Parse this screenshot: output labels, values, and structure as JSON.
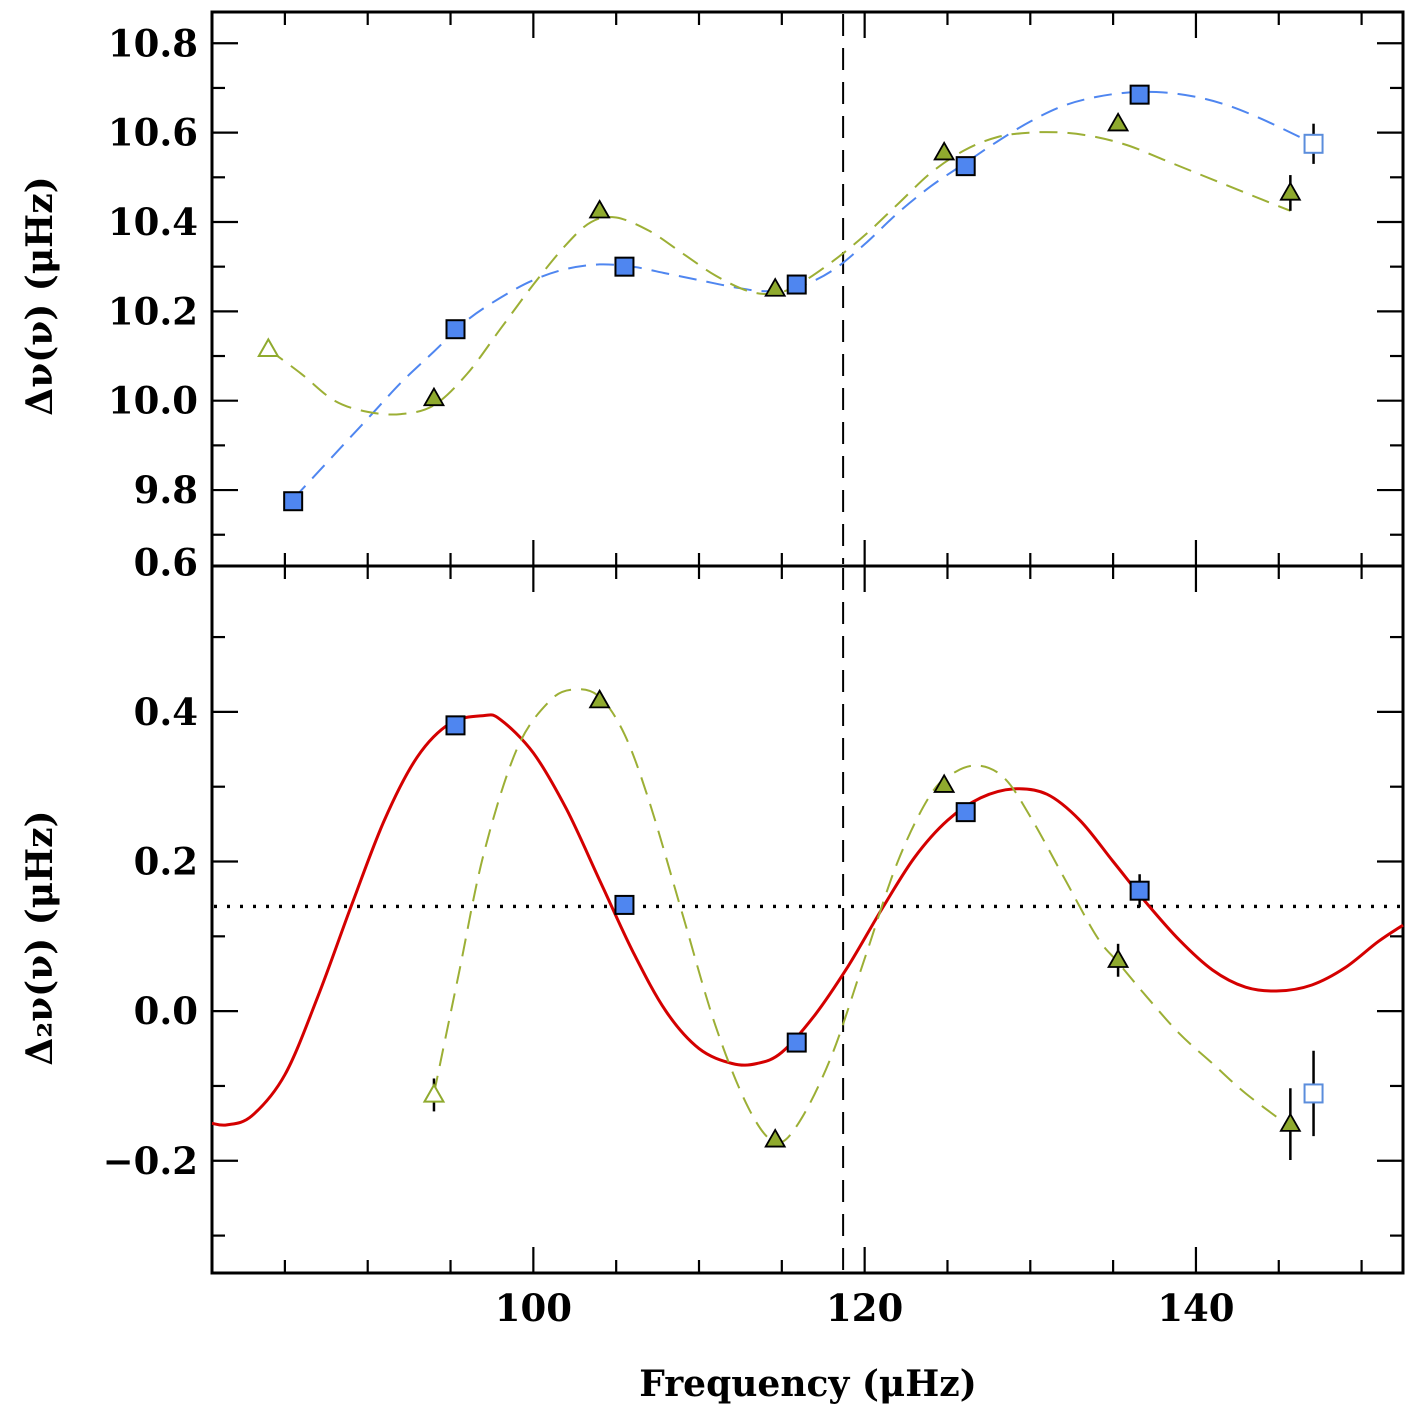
{
  "colors": {
    "square_fill": "#4f86f0",
    "square_open_stroke": "#5b8ddc",
    "square_fit": "#4f86f0",
    "triangle_fill": "#8faa2e",
    "triangle_open_stroke": "#8faa2e",
    "triangle_fit": "#9caf35",
    "red_fit": "#d40000",
    "axis": "#000000"
  },
  "chart_data": [
    {
      "id": "top",
      "type": "scatter",
      "ylabel": "Δν(ν) (μHz)",
      "xlim": [
        80.6,
        152.5
      ],
      "ylim": [
        9.63,
        10.87
      ],
      "y_major_ticks": [
        9.8,
        10.0,
        10.2,
        10.4,
        10.6,
        10.8
      ],
      "y_tick_labels": [
        "9.8",
        "10.0",
        "10.2",
        "10.4",
        "10.6",
        "10.8"
      ],
      "y_minor_step": 0.1,
      "vertical_line_x": 118.7,
      "series": [
        {
          "marker": "square",
          "points": [
            {
              "x": 85.5,
              "y": 9.775,
              "open": false
            },
            {
              "x": 95.3,
              "y": 10.16,
              "open": false
            },
            {
              "x": 105.5,
              "y": 10.3,
              "open": false
            },
            {
              "x": 115.9,
              "y": 10.26,
              "open": false
            },
            {
              "x": 126.1,
              "y": 10.525,
              "open": false
            },
            {
              "x": 136.6,
              "y": 10.685,
              "open": false
            },
            {
              "x": 147.1,
              "y": 10.575,
              "open": true,
              "err": 0.045
            }
          ]
        },
        {
          "marker": "triangle",
          "points": [
            {
              "x": 84.0,
              "y": 10.115,
              "open": true
            },
            {
              "x": 94.0,
              "y": 10.005,
              "open": false
            },
            {
              "x": 104.0,
              "y": 10.425,
              "open": false
            },
            {
              "x": 114.6,
              "y": 10.25,
              "open": false
            },
            {
              "x": 124.8,
              "y": 10.555,
              "open": false
            },
            {
              "x": 135.3,
              "y": 10.62,
              "open": false
            },
            {
              "x": 145.7,
              "y": 10.465,
              "open": false,
              "err": 0.04
            }
          ]
        }
      ],
      "fits": [
        {
          "style": "dashed",
          "color_key": "square_fit",
          "x": [
            85.5,
            88,
            90,
            92,
            94,
            96,
            98,
            100,
            102,
            104,
            106,
            108,
            110,
            112,
            114,
            116,
            118,
            120,
            122,
            124,
            126,
            128,
            130,
            132,
            134,
            136,
            138,
            140,
            142,
            144,
            146,
            147.1
          ],
          "y": [
            9.78,
            9.88,
            9.96,
            10.04,
            10.11,
            10.18,
            10.23,
            10.27,
            10.295,
            10.305,
            10.3,
            10.285,
            10.27,
            10.255,
            10.245,
            10.255,
            10.29,
            10.35,
            10.42,
            10.48,
            10.53,
            10.58,
            10.625,
            10.66,
            10.68,
            10.69,
            10.69,
            10.68,
            10.66,
            10.63,
            10.595,
            10.575
          ]
        },
        {
          "style": "dashed",
          "color_key": "triangle_fit",
          "x": [
            84,
            86,
            88,
            90,
            92,
            94,
            96,
            98,
            100,
            102,
            103.5,
            105,
            107,
            109,
            111,
            113,
            114.6,
            116,
            118,
            120,
            122,
            124,
            126,
            128,
            130,
            132,
            134,
            136,
            138,
            140,
            142,
            144,
            145.7
          ],
          "y": [
            10.115,
            10.06,
            10.0,
            9.975,
            9.97,
            9.99,
            10.06,
            10.16,
            10.26,
            10.35,
            10.4,
            10.41,
            10.38,
            10.33,
            10.28,
            10.245,
            10.24,
            10.26,
            10.31,
            10.37,
            10.44,
            10.51,
            10.56,
            10.59,
            10.6,
            10.6,
            10.59,
            10.57,
            10.54,
            10.51,
            10.48,
            10.45,
            10.425
          ]
        }
      ]
    },
    {
      "id": "bottom",
      "type": "scatter",
      "xlabel": "Frequency (μHz)",
      "ylabel": "Δ₂ν(ν) (μHz)",
      "xlim": [
        80.6,
        152.5
      ],
      "ylim": [
        -0.35,
        0.595
      ],
      "y_major_ticks": [
        -0.2,
        0.0,
        0.2,
        0.4,
        0.6
      ],
      "y_tick_labels": [
        "−0.2",
        "0.0",
        "0.2",
        "0.4",
        "0.6"
      ],
      "y_minor_step": 0.1,
      "x_major_ticks": [
        100,
        120,
        140
      ],
      "x_tick_labels": [
        "100",
        "120",
        "140"
      ],
      "x_minor_step": 5,
      "vertical_line_x": 118.7,
      "horizontal_line_y": 0.14,
      "series": [
        {
          "marker": "square",
          "points": [
            {
              "x": 95.3,
              "y": 0.382,
              "open": false
            },
            {
              "x": 105.5,
              "y": 0.142,
              "open": false
            },
            {
              "x": 115.9,
              "y": -0.042,
              "open": false
            },
            {
              "x": 126.1,
              "y": 0.266,
              "open": false
            },
            {
              "x": 136.6,
              "y": 0.161,
              "open": false,
              "err": 0.022
            },
            {
              "x": 147.1,
              "y": -0.11,
              "open": true,
              "err": 0.057
            }
          ]
        },
        {
          "marker": "triangle",
          "points": [
            {
              "x": 94.0,
              "y": -0.112,
              "open": true,
              "err": 0.022
            },
            {
              "x": 104.0,
              "y": 0.415,
              "open": false
            },
            {
              "x": 114.6,
              "y": -0.172,
              "open": false
            },
            {
              "x": 124.8,
              "y": 0.302,
              "open": false
            },
            {
              "x": 135.3,
              "y": 0.068,
              "open": false,
              "err": 0.022
            },
            {
              "x": 145.7,
              "y": -0.151,
              "open": false,
              "err": 0.048
            }
          ]
        }
      ],
      "fits": [
        {
          "style": "solid",
          "color_key": "red_fit",
          "x": [
            80.6,
            81.5,
            83,
            85,
            87,
            89,
            91,
            93,
            95,
            97,
            98,
            100,
            102,
            104,
            106,
            108,
            110,
            112,
            113.5,
            115,
            117,
            119,
            121,
            123,
            125,
            127,
            129,
            131,
            133,
            135,
            137,
            139,
            141,
            143,
            145,
            147,
            149,
            151,
            152.5
          ],
          "y": [
            -0.15,
            -0.152,
            -0.14,
            -0.085,
            0.02,
            0.14,
            0.255,
            0.34,
            0.385,
            0.395,
            0.39,
            0.345,
            0.27,
            0.175,
            0.08,
            0.0,
            -0.05,
            -0.07,
            -0.07,
            -0.055,
            -0.005,
            0.06,
            0.135,
            0.205,
            0.255,
            0.285,
            0.297,
            0.29,
            0.255,
            0.2,
            0.145,
            0.095,
            0.055,
            0.032,
            0.027,
            0.035,
            0.058,
            0.093,
            0.115
          ]
        },
        {
          "style": "dashed",
          "color_key": "triangle_fit",
          "x": [
            94.0,
            95.5,
            97,
            99,
            101,
            102.5,
            104,
            105.5,
            107,
            109,
            111,
            113,
            114.6,
            116,
            118,
            120,
            122,
            124,
            125.5,
            127,
            128.5,
            130,
            132,
            134,
            135.3,
            137,
            139,
            141,
            143,
            145.7
          ],
          "y": [
            -0.11,
            0.05,
            0.21,
            0.35,
            0.415,
            0.43,
            0.42,
            0.37,
            0.28,
            0.13,
            -0.02,
            -0.13,
            -0.175,
            -0.15,
            -0.06,
            0.07,
            0.2,
            0.29,
            0.32,
            0.328,
            0.31,
            0.26,
            0.18,
            0.1,
            0.065,
            0.02,
            -0.03,
            -0.07,
            -0.11,
            -0.155
          ]
        }
      ]
    }
  ]
}
